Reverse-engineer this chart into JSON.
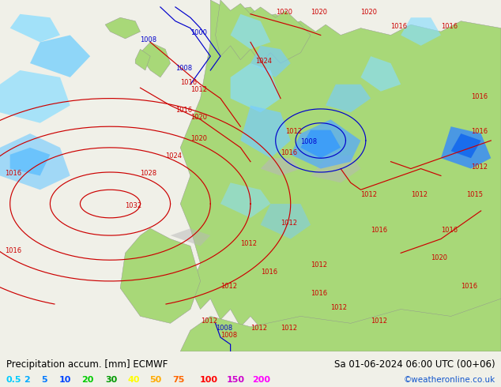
{
  "title_left": "Precipitation accum. [mm] ECMWF",
  "title_right": "Sa 01-06-2024 06:00 UTC (00+06)",
  "credit": "©weatheronline.co.uk",
  "legend_values": [
    "0.5",
    "2",
    "5",
    "10",
    "20",
    "30",
    "40",
    "50",
    "75",
    "100",
    "150",
    "200"
  ],
  "legend_colors": [
    "#00ccff",
    "#00aaff",
    "#0077ff",
    "#0044ff",
    "#00cc00",
    "#009900",
    "#ffff00",
    "#ffaa00",
    "#ff6600",
    "#ff0000",
    "#cc00cc",
    "#ff00ff"
  ],
  "bg_color": "#f0f0e8",
  "ocean_color": "#d8dfe8",
  "land_color": "#a8d878",
  "mountain_color": "#b8b8b8",
  "title_fontsize": 8.5,
  "legend_fontsize": 8,
  "credit_fontsize": 7.5,
  "isobar_red": "#cc0000",
  "isobar_blue": "#0000cc",
  "label_fontsize": 6
}
